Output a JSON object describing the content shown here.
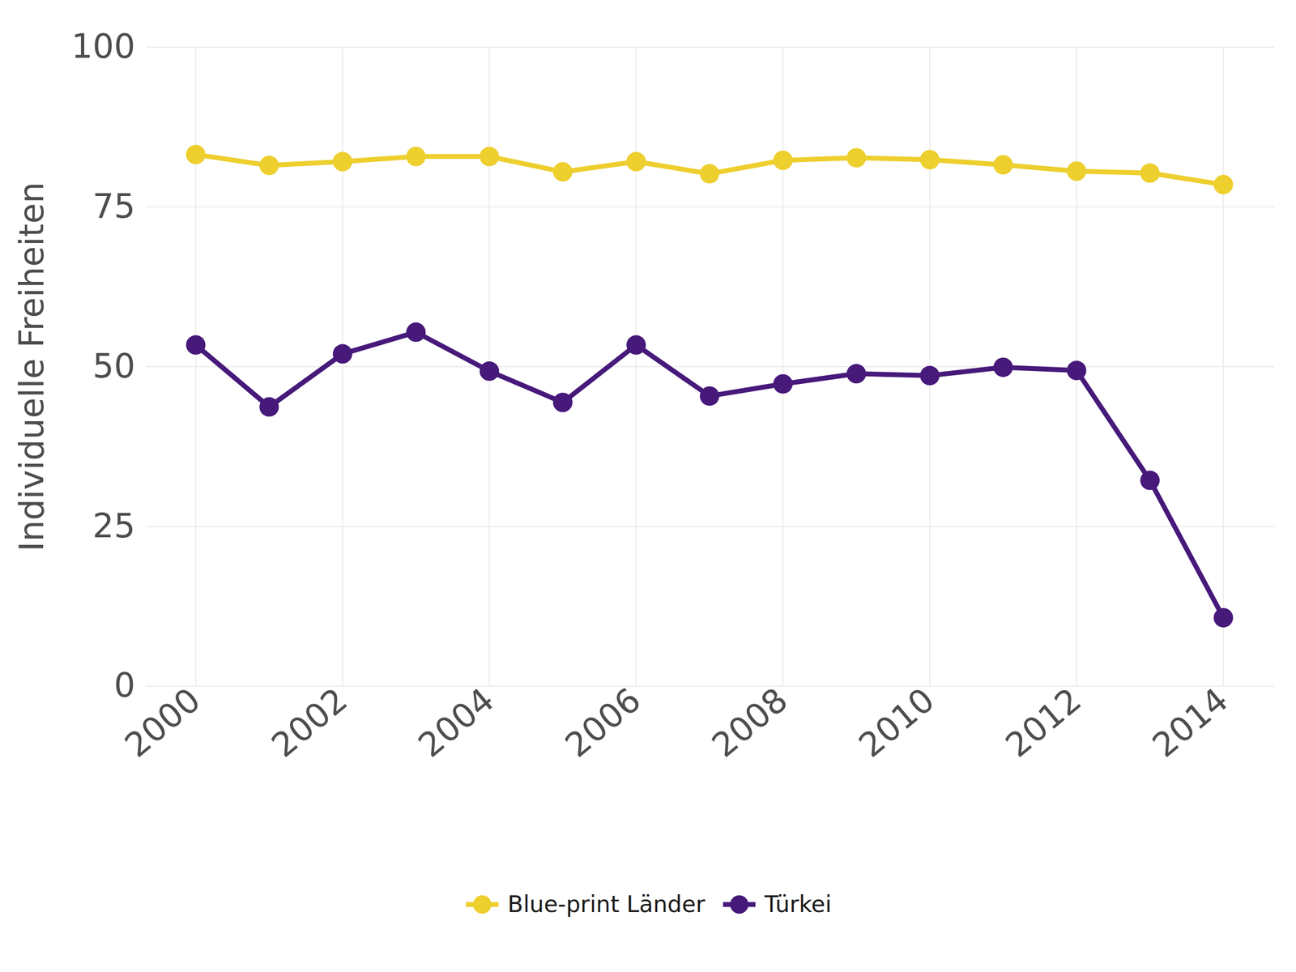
{
  "chart_data": {
    "type": "line",
    "y_label": "Individuelle Freiheiten",
    "x": [
      2000,
      2001,
      2002,
      2003,
      2004,
      2005,
      2006,
      2007,
      2008,
      2009,
      2010,
      2011,
      2012,
      2013,
      2014
    ],
    "series": [
      {
        "name": "Blue-print Länder",
        "color": "#EDCF2E",
        "marker": "circle",
        "line_style": "solid",
        "values": [
          83.2,
          81.5,
          82.1,
          82.9,
          82.9,
          80.5,
          82.1,
          80.2,
          82.3,
          82.7,
          82.4,
          81.6,
          80.6,
          80.3,
          78.5
        ]
      },
      {
        "name": "Türkei",
        "color": "#46197A",
        "marker": "circle",
        "line_style": "solid",
        "values": [
          53.4,
          43.7,
          52.0,
          55.4,
          49.3,
          44.4,
          53.4,
          45.4,
          47.3,
          48.9,
          48.6,
          49.9,
          49.4,
          32.2,
          10.7
        ]
      }
    ],
    "xlim": [
      2000,
      2014
    ],
    "xticks": [
      2000,
      2002,
      2004,
      2006,
      2008,
      2010,
      2012,
      2014
    ],
    "ylim": [
      0,
      100
    ],
    "yticks": [
      0,
      25,
      50,
      75,
      100
    ],
    "grid": true,
    "legend": "bottom"
  }
}
